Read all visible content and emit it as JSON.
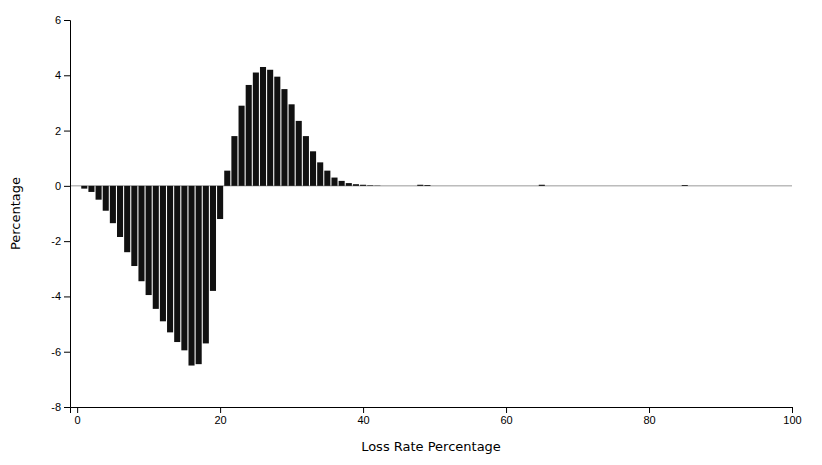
{
  "chart_data": {
    "type": "bar",
    "xlabel": "Loss Rate Percentage",
    "ylabel": "Percentage",
    "x": [
      1,
      2,
      3,
      4,
      5,
      6,
      7,
      8,
      9,
      10,
      11,
      12,
      13,
      14,
      15,
      16,
      17,
      18,
      19,
      20,
      21,
      22,
      23,
      24,
      25,
      26,
      27,
      28,
      29,
      30,
      31,
      32,
      33,
      34,
      35,
      36,
      37,
      38,
      39,
      40,
      41,
      42,
      48,
      49,
      65,
      85
    ],
    "values": [
      -0.1,
      -0.22,
      -0.5,
      -0.9,
      -1.35,
      -1.85,
      -2.4,
      -2.9,
      -3.45,
      -3.95,
      -4.45,
      -4.9,
      -5.3,
      -5.65,
      -5.95,
      -6.5,
      -6.45,
      -5.7,
      -3.8,
      -1.2,
      0.55,
      1.8,
      2.9,
      3.65,
      4.1,
      4.3,
      4.2,
      3.95,
      3.5,
      2.95,
      2.35,
      1.8,
      1.25,
      0.85,
      0.55,
      0.3,
      0.18,
      0.1,
      0.06,
      0.04,
      0.02,
      0.01,
      0.04,
      0.03,
      0.04,
      0.03
    ],
    "color": "#111111",
    "xlim": [
      -1,
      100
    ],
    "xticks": [
      0,
      20,
      40,
      60,
      80,
      100
    ],
    "ylim": [
      -8,
      6
    ],
    "yticks": [
      -8,
      -6,
      -4,
      -2,
      0,
      2,
      4,
      6
    ]
  }
}
